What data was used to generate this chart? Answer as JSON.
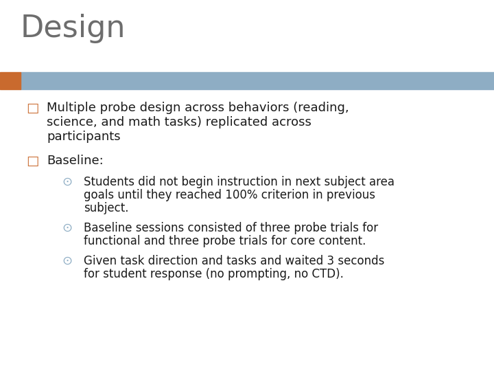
{
  "title": "Design",
  "title_color": "#6d6d6d",
  "title_fontsize": 32,
  "background_color": "#ffffff",
  "header_bar_color": "#8eadc4",
  "header_bar_accent_color": "#c96a2e",
  "bullet_marker": "□",
  "bullet_marker_color": "#c96a2e",
  "sub_bullet_marker": "⊙",
  "sub_bullet_marker_color": "#8eadc4",
  "bullet1_lines": [
    "Multiple probe design across behaviors (reading,",
    "science, and math tasks) replicated across",
    "participants"
  ],
  "bullet2_text": "Baseline:",
  "sub_bullets": [
    [
      "Students did not begin instruction in next subject area",
      "goals until they reached 100% criterion in previous",
      "subject."
    ],
    [
      "Baseline sessions consisted of three probe trials for",
      "functional and three probe trials for core content."
    ],
    [
      "Given task direction and tasks and waited 3 seconds",
      "for student response (no prompting, no CTD)."
    ]
  ],
  "main_fontsize": 13.0,
  "sub_fontsize": 12.0,
  "text_color": "#1a1a1a",
  "fig_width": 7.2,
  "fig_height": 5.4,
  "dpi": 100
}
